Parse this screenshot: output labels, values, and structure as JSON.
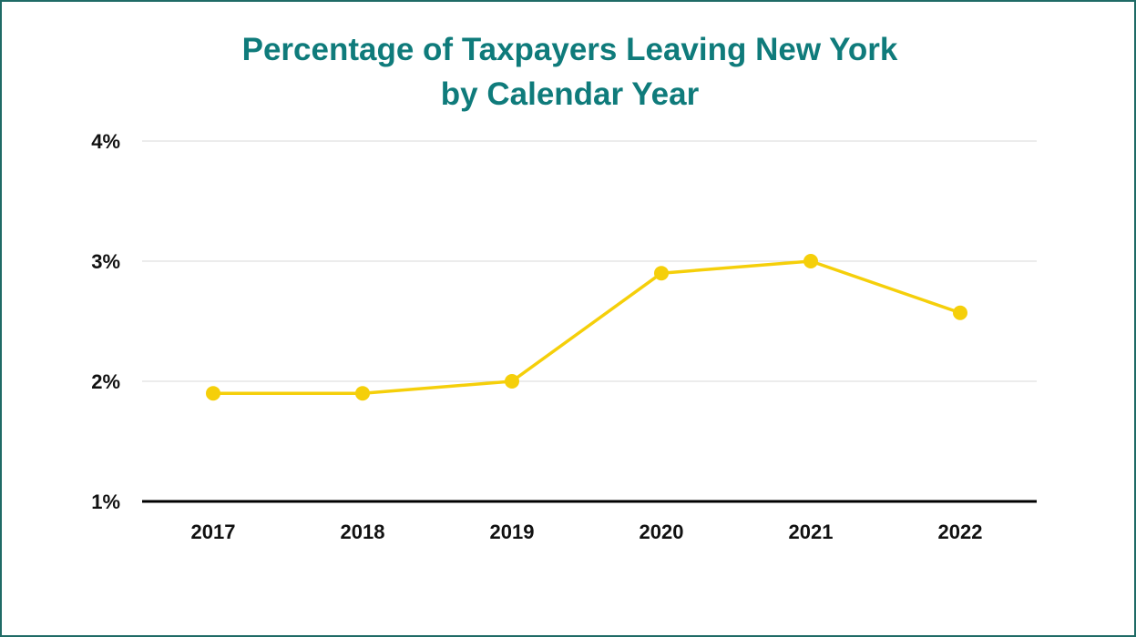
{
  "colors": {
    "title": "#0f7b7b",
    "line": "#f5cf0a",
    "border": "#1f6b66",
    "grid": "#d9d9d9",
    "baseline": "#000000"
  },
  "chart_data": {
    "type": "line",
    "title": "Percentage of Taxpayers Leaving New York by Calendar Year",
    "title_lines": [
      "Percentage of Taxpayers Leaving New York",
      "by Calendar Year"
    ],
    "xlabel": "",
    "ylabel": "",
    "categories": [
      "2017",
      "2018",
      "2019",
      "2020",
      "2021",
      "2022"
    ],
    "series": [
      {
        "values": [
          1.9,
          1.9,
          2.0,
          2.9,
          3.0,
          2.57
        ]
      }
    ],
    "ylim": [
      1,
      4
    ],
    "yticks": [
      1,
      2,
      3,
      4
    ],
    "ytick_labels": [
      "1%",
      "2%",
      "3%",
      "4%"
    ],
    "grid": true,
    "legend": "none"
  }
}
